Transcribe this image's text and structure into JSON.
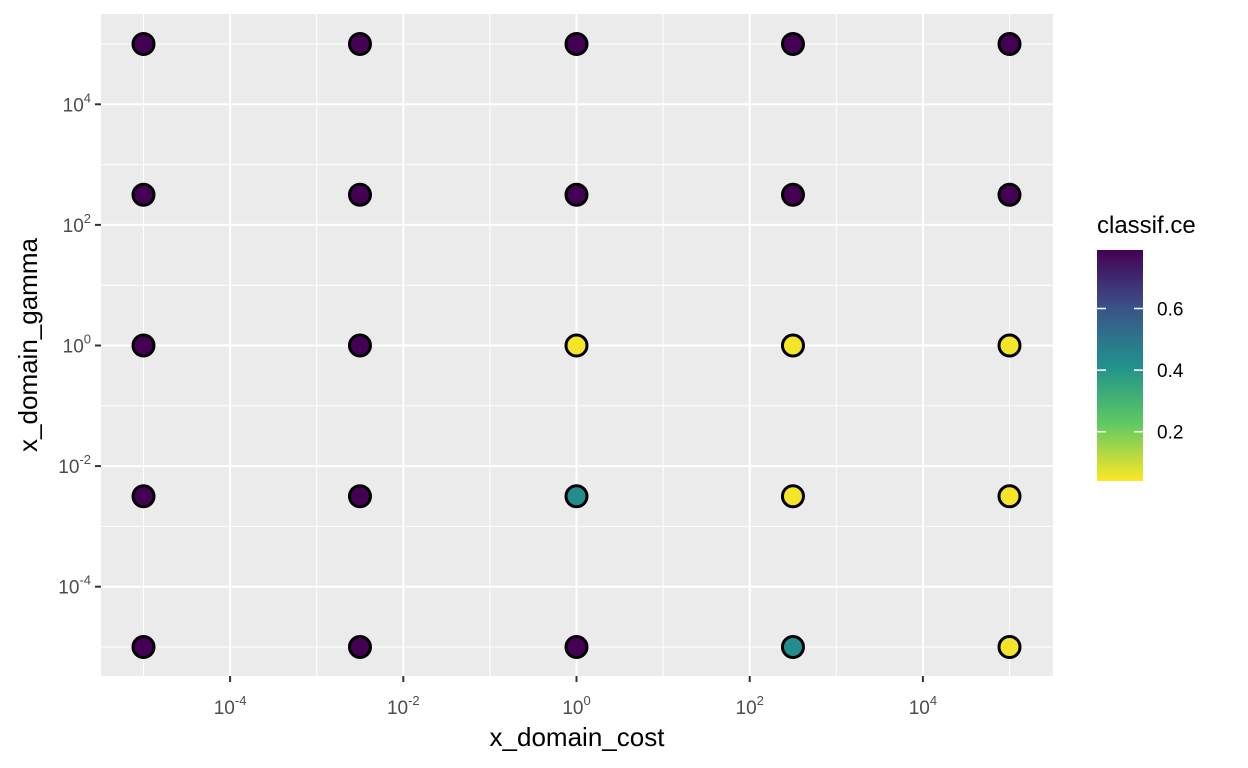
{
  "chart_data": {
    "type": "scatter",
    "xlabel": "x_domain_cost",
    "ylabel": "x_domain_gamma",
    "x_scale": "log10",
    "y_scale": "log10",
    "x_ticks": [
      0.0001,
      0.01,
      1,
      100,
      10000
    ],
    "y_ticks": [
      0.0001,
      0.01,
      1,
      100,
      10000
    ],
    "x_tick_labels": [
      {
        "base": "10",
        "exp": "-4"
      },
      {
        "base": "10",
        "exp": "-2"
      },
      {
        "base": "10",
        "exp": "0"
      },
      {
        "base": "10",
        "exp": "2"
      },
      {
        "base": "10",
        "exp": "4"
      }
    ],
    "y_tick_labels": [
      {
        "base": "10",
        "exp": "-4"
      },
      {
        "base": "10",
        "exp": "-2"
      },
      {
        "base": "10",
        "exp": "0"
      },
      {
        "base": "10",
        "exp": "2"
      },
      {
        "base": "10",
        "exp": "4"
      }
    ],
    "grid": true,
    "legend": {
      "title": "classif.ce",
      "type": "colorbar",
      "placement": "right",
      "breaks": [
        0.6,
        0.4,
        0.2
      ],
      "break_labels": [
        "0.6",
        "0.4",
        "0.2"
      ],
      "range": [
        0.04,
        0.79
      ],
      "palette": "viridis (reversed)"
    },
    "points": [
      {
        "x": 1e-05,
        "y": 100000,
        "value": 0.79
      },
      {
        "x": 0.00316,
        "y": 100000,
        "value": 0.79
      },
      {
        "x": 1,
        "y": 100000,
        "value": 0.79
      },
      {
        "x": 316,
        "y": 100000,
        "value": 0.79
      },
      {
        "x": 100000,
        "y": 100000,
        "value": 0.79
      },
      {
        "x": 1e-05,
        "y": 316,
        "value": 0.79
      },
      {
        "x": 0.00316,
        "y": 316,
        "value": 0.79
      },
      {
        "x": 1,
        "y": 316,
        "value": 0.79
      },
      {
        "x": 316,
        "y": 316,
        "value": 0.79
      },
      {
        "x": 100000,
        "y": 316,
        "value": 0.79
      },
      {
        "x": 1e-05,
        "y": 1,
        "value": 0.79
      },
      {
        "x": 0.00316,
        "y": 1,
        "value": 0.79
      },
      {
        "x": 1,
        "y": 1,
        "value": 0.05
      },
      {
        "x": 316,
        "y": 1,
        "value": 0.05
      },
      {
        "x": 100000,
        "y": 1,
        "value": 0.05
      },
      {
        "x": 1e-05,
        "y": 0.00316,
        "value": 0.79
      },
      {
        "x": 0.00316,
        "y": 0.00316,
        "value": 0.79
      },
      {
        "x": 1,
        "y": 0.00316,
        "value": 0.43
      },
      {
        "x": 316,
        "y": 0.00316,
        "value": 0.05
      },
      {
        "x": 100000,
        "y": 0.00316,
        "value": 0.05
      },
      {
        "x": 1e-05,
        "y": 1e-05,
        "value": 0.79
      },
      {
        "x": 0.00316,
        "y": 1e-05,
        "value": 0.79
      },
      {
        "x": 1,
        "y": 1e-05,
        "value": 0.79
      },
      {
        "x": 316,
        "y": 1e-05,
        "value": 0.43
      },
      {
        "x": 100000,
        "y": 1e-05,
        "value": 0.05
      }
    ]
  }
}
